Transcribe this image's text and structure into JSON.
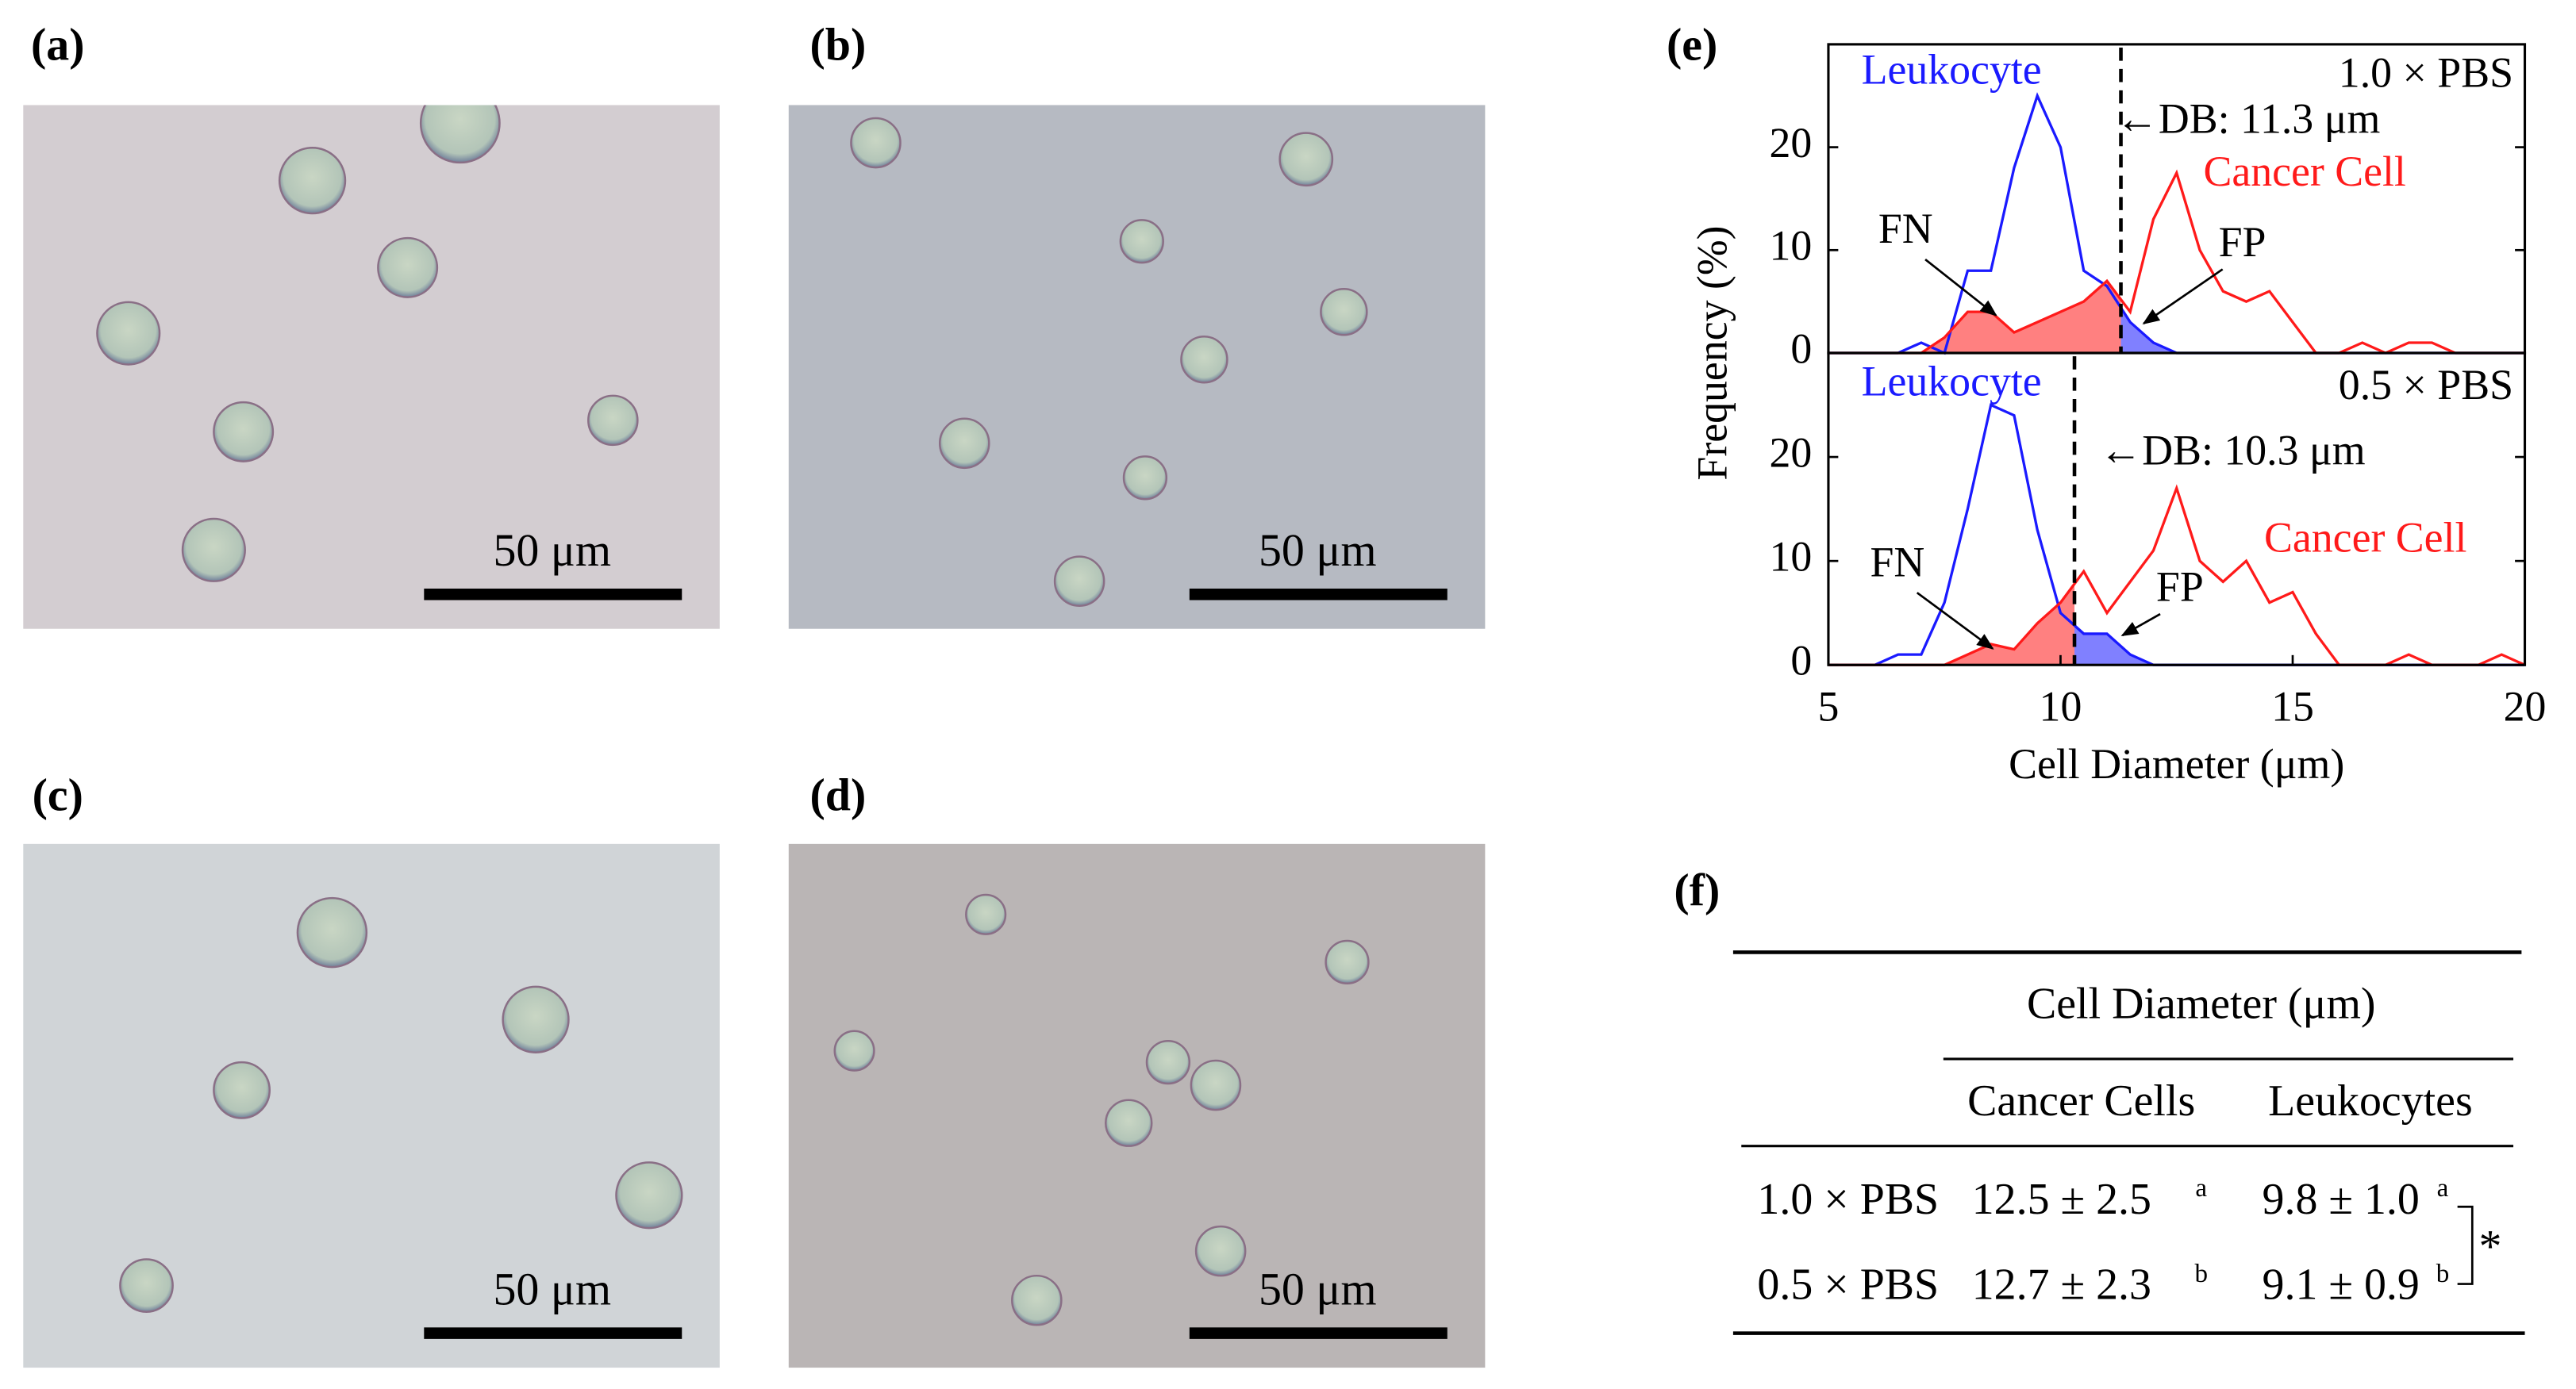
{
  "panels": {
    "micrographs": [
      {
        "label": "(a)",
        "scale_bar": "50 μm"
      },
      {
        "label": "(b)",
        "scale_bar": "50 μm"
      },
      {
        "label": "(c)",
        "scale_bar": "50 μm"
      },
      {
        "label": "(d)",
        "scale_bar": "50 μm"
      }
    ],
    "histogram_label": "(e)",
    "table_label": "(f)"
  },
  "chart_data": [
    {
      "type": "line",
      "condition": "1.0 × PBS",
      "ylabel": "Frequency (%)",
      "x": [
        5,
        5.5,
        6,
        6.5,
        7,
        7.5,
        8,
        8.5,
        9,
        9.5,
        10,
        10.5,
        11,
        11.5,
        12,
        12.5,
        13,
        13.5,
        14,
        14.5,
        15,
        15.5,
        16,
        16.5,
        17,
        17.5,
        18,
        18.5,
        19,
        19.5,
        20
      ],
      "series": [
        {
          "name": "Leukocyte",
          "color": "#1a1aff",
          "fill": "#8080ff",
          "values": [
            0,
            0,
            0,
            0,
            1,
            0,
            8,
            8,
            18,
            25,
            20,
            8,
            6.5,
            3,
            1,
            0,
            0,
            0,
            0,
            0,
            0,
            0,
            0,
            0,
            0,
            0,
            0,
            0,
            0,
            0,
            0
          ]
        },
        {
          "name": "Cancer Cell",
          "color": "#ff1a1a",
          "fill": "#ff8080",
          "values": [
            0,
            0,
            0,
            0,
            0,
            1.5,
            4,
            4,
            2,
            3,
            4,
            5,
            7,
            4,
            13,
            17.5,
            10,
            6,
            5,
            6,
            3,
            0,
            0,
            1,
            0,
            1,
            1,
            0,
            0,
            0,
            0
          ]
        }
      ],
      "db": {
        "value": 11.3,
        "label": "←DB: 11.3 μm"
      },
      "annotations": [
        "FN",
        "FP"
      ],
      "xlim": [
        5,
        20
      ],
      "ylim": [
        0,
        30
      ],
      "yticks": [
        0,
        10,
        20
      ]
    },
    {
      "type": "line",
      "condition": "0.5 × PBS",
      "xlabel": "Cell Diameter (μm)",
      "x": [
        5,
        5.5,
        6,
        6.5,
        7,
        7.5,
        8,
        8.5,
        9,
        9.5,
        10,
        10.5,
        11,
        11.5,
        12,
        12.5,
        13,
        13.5,
        14,
        14.5,
        15,
        15.5,
        16,
        16.5,
        17,
        17.5,
        18,
        18.5,
        19,
        19.5,
        20
      ],
      "series": [
        {
          "name": "Leukocyte",
          "color": "#1a1aff",
          "fill": "#8080ff",
          "values": [
            0,
            0,
            0,
            1,
            1,
            6,
            15,
            25,
            24,
            13,
            5,
            3,
            3,
            1,
            0,
            0,
            0,
            0,
            0,
            0,
            0,
            0,
            0,
            0,
            0,
            0,
            0,
            0,
            0,
            0,
            0
          ]
        },
        {
          "name": "Cancer Cell",
          "color": "#ff1a1a",
          "fill": "#ff8080",
          "values": [
            0,
            0,
            0,
            0,
            0,
            0,
            1,
            2,
            1.5,
            4,
            6,
            9,
            5,
            8,
            11,
            17,
            10,
            8,
            10,
            6,
            7,
            3,
            0,
            0,
            0,
            1,
            0,
            0,
            0,
            1,
            0
          ]
        }
      ],
      "db": {
        "value": 10.3,
        "label": "←DB: 10.3 μm"
      },
      "annotations": [
        "FN",
        "FP"
      ],
      "xlim": [
        5,
        20
      ],
      "ylim": [
        0,
        30
      ],
      "xticks": [
        5,
        10,
        15,
        20
      ],
      "yticks": [
        0,
        10,
        20
      ]
    }
  ],
  "table": {
    "title": "Cell Diameter (μm)",
    "columns": [
      "Cancer Cells",
      "Leukocytes"
    ],
    "rows": [
      {
        "label": "1.0 × PBS",
        "cells": [
          {
            "text": "12.5 ± 2.5",
            "mark": "a"
          },
          {
            "text": "9.8 ± 1.0",
            "mark": "a"
          }
        ]
      },
      {
        "label": "0.5 × PBS",
        "cells": [
          {
            "text": "12.7 ± 2.3",
            "mark": "b"
          },
          {
            "text": "9.1 ± 0.9",
            "mark": "b"
          }
        ]
      }
    ],
    "significance": "*"
  }
}
